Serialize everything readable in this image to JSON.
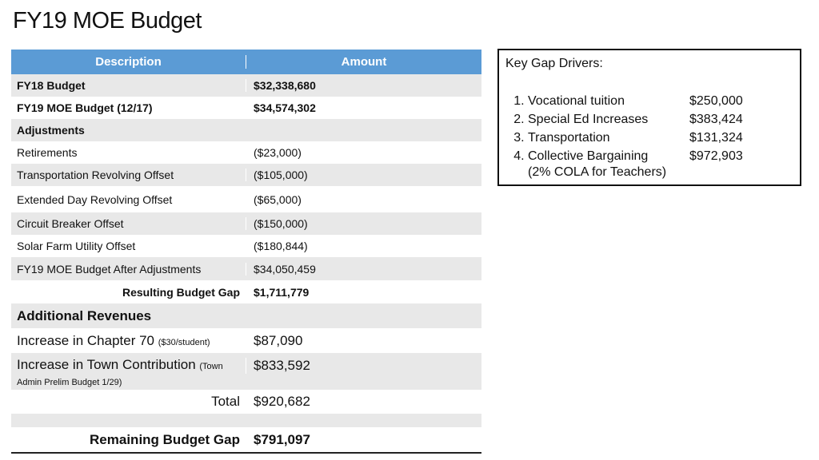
{
  "header": {
    "title": "FY19 MOE Budget"
  },
  "table": {
    "columns": [
      "Description",
      "Amount"
    ],
    "rows": [
      {
        "description": "FY18 Budget",
        "amount": "$32,338,680"
      },
      {
        "description": "FY19 MOE Budget (12/17)",
        "amount": "$34,574,302"
      },
      {
        "description": "Adjustments"
      },
      {
        "description": "Retirements",
        "amount": "($23,000)"
      },
      {
        "description": "Transportation Revolving Offset",
        "amount": "($105,000)"
      },
      {
        "description": "Extended Day Revolving Offset",
        "amount": "($65,000)"
      },
      {
        "description": "Circuit Breaker Offset",
        "amount": "($150,000)"
      },
      {
        "description": "Solar Farm Utility Offset",
        "amount": "($180,844)"
      },
      {
        "description": "FY19 MOE Budget After Adjustments",
        "amount": "$34,050,459"
      },
      {
        "description": "Resulting Budget Gap",
        "amount": "$1,711,779"
      },
      {
        "description": "Additional Revenues"
      },
      {
        "description": "Increase in Chapter 70",
        "note": "($30/student)",
        "amount": "$87,090"
      },
      {
        "description": "Increase in Town Contribution",
        "note": "(Town Admin Prelim Budget 1/29)",
        "amount": "$833,592"
      },
      {
        "description": "Total",
        "amount": "$920,682"
      },
      {},
      {
        "description": "Remaining Budget Gap",
        "amount": "$791,097"
      }
    ]
  },
  "gap_drivers": {
    "title": "Key Gap Drivers:",
    "items": [
      {
        "label": "Vocational tuition",
        "amount": "$250,000"
      },
      {
        "label": "Special Ed Increases",
        "amount": "$383,424"
      },
      {
        "label": "Transportation",
        "amount": "$131,324"
      },
      {
        "label": "Collective Bargaining",
        "amount": "$972,903"
      }
    ],
    "note": "(2% COLA for Teachers)"
  }
}
